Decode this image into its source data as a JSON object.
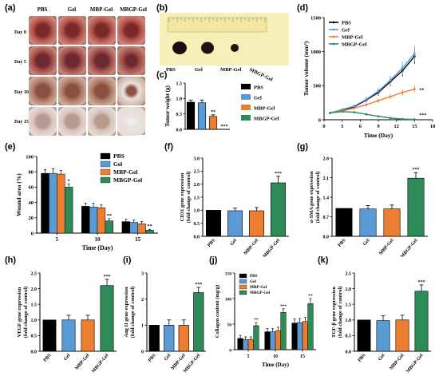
{
  "panels": {
    "a": "(a)",
    "b": "(b)",
    "c": "(c)",
    "d": "(d)",
    "e": "(e)",
    "f": "(f)",
    "g": "(g)",
    "h": "(h)",
    "i": "(i)",
    "j": "(j)",
    "k": "(k)"
  },
  "photo_panel": {
    "groups": [
      "PBS",
      "Gel",
      "MBP-Gel",
      "MBGP-Gel"
    ],
    "days": [
      "Day 0",
      "Day 5",
      "Day 10",
      "Day 15"
    ]
  },
  "tumor_photo": {
    "labels": [
      "PBS",
      "Gel",
      "MBP-Gel",
      "MBGP-Gel"
    ]
  },
  "colors": {
    "PBS": "#000000",
    "Gel": "#5b9bd5",
    "MBP-Gel": "#ed7d31",
    "MBGP-Gel": "#2e8b57"
  },
  "chart_data": [
    {
      "id": "c",
      "type": "bar",
      "ylabel": "Tumor weight (g)",
      "ylim": [
        0,
        1.5
      ],
      "yticks": [
        0.0,
        0.5,
        1.0,
        1.5
      ],
      "categories": [
        "PBS",
        "Gel",
        "MBP-Gel",
        "MBGP-Gel"
      ],
      "values": [
        0.88,
        0.86,
        0.42,
        0.0
      ],
      "errors": [
        0.07,
        0.09,
        0.05,
        0.0
      ],
      "annotations": [
        "",
        "",
        "**",
        "***"
      ],
      "legend": [
        "PBS",
        "Gel",
        "MBP-Gel",
        "MBGP-Gel"
      ]
    },
    {
      "id": "d",
      "type": "line",
      "xlabel": "Time (Day)",
      "ylabel": "Tumor volume (mm³)",
      "xlim": [
        0,
        18
      ],
      "xticks": [
        0,
        3,
        6,
        9,
        12,
        15,
        18
      ],
      "ylim": [
        0,
        1500
      ],
      "yticks": [
        0,
        500,
        1000,
        1500
      ],
      "x": [
        1,
        3,
        5,
        7,
        9,
        11,
        13,
        15
      ],
      "series": [
        {
          "name": "PBS",
          "values": [
            100,
            140,
            190,
            290,
            400,
            560,
            720,
            930
          ]
        },
        {
          "name": "Gel",
          "values": [
            100,
            150,
            200,
            300,
            420,
            580,
            760,
            970
          ]
        },
        {
          "name": "MBP-Gel",
          "values": [
            100,
            130,
            170,
            220,
            280,
            340,
            400,
            450
          ]
        },
        {
          "name": "MBGP-Gel",
          "values": [
            100,
            120,
            110,
            80,
            50,
            25,
            10,
            5
          ]
        }
      ],
      "annotations": [
        "**",
        "***"
      ]
    },
    {
      "id": "e",
      "type": "bar",
      "xlabel": "Time (Day)",
      "ylabel": "Wound area (%)",
      "ylim": [
        0,
        100
      ],
      "yticks": [
        0,
        20,
        40,
        60,
        80,
        100
      ],
      "categories": [
        "5",
        "10",
        "15"
      ],
      "series": [
        {
          "name": "PBS",
          "values": [
            78,
            35,
            15
          ],
          "errors": [
            5,
            4,
            3
          ]
        },
        {
          "name": "Gel",
          "values": [
            78,
            34,
            14
          ],
          "errors": [
            6,
            5,
            3
          ]
        },
        {
          "name": "MBP-Gel",
          "values": [
            77,
            33,
            12
          ],
          "errors": [
            5,
            4,
            3
          ]
        },
        {
          "name": "MBGP-Gel",
          "values": [
            60,
            16,
            4
          ],
          "errors": [
            4,
            3,
            1
          ]
        }
      ],
      "annotations": [
        "*",
        "**",
        "**"
      ]
    },
    {
      "id": "f",
      "type": "bar",
      "ylabel": "CD31 gene expression (fold change of control)",
      "ylim": [
        0,
        3.0
      ],
      "yticks": [
        0.0,
        0.5,
        1.0,
        1.5,
        2.0,
        2.5,
        3.0
      ],
      "categories": [
        "PBS",
        "Gel",
        "MBP-Gel",
        "MBGP-Gel"
      ],
      "values": [
        1.0,
        0.98,
        0.98,
        2.05
      ],
      "errors": [
        0,
        0.1,
        0.12,
        0.25
      ],
      "annotations": [
        "",
        "",
        "",
        "***"
      ]
    },
    {
      "id": "g",
      "type": "bar",
      "ylabel": "α-SMA gene expression (fold change of control)",
      "ylim": [
        0,
        2.8
      ],
      "yticks": [
        0.0,
        0.7,
        1.4,
        2.1,
        2.8
      ],
      "categories": [
        "PBS",
        "Gel",
        "MBP-Gel",
        "MBGP-Gel"
      ],
      "values": [
        1.0,
        0.98,
        0.98,
        2.08
      ],
      "errors": [
        0,
        0.12,
        0.14,
        0.2
      ],
      "annotations": [
        "",
        "",
        "",
        "***"
      ]
    },
    {
      "id": "h",
      "type": "bar",
      "ylabel": "VEGF gene expression (fold change of control)",
      "ylim": [
        0,
        2.5
      ],
      "yticks": [
        0.0,
        0.5,
        1.0,
        1.5,
        2.0,
        2.5
      ],
      "categories": [
        "PBS",
        "Gel",
        "MBP-Gel",
        "MBGP-Gel"
      ],
      "values": [
        1.0,
        1.0,
        1.0,
        2.1
      ],
      "errors": [
        0,
        0.15,
        0.15,
        0.2
      ],
      "annotations": [
        "",
        "",
        "",
        "***"
      ]
    },
    {
      "id": "i",
      "type": "bar",
      "ylabel": "Ang II gene expression (fold change of control)",
      "ylim": [
        0,
        3
      ],
      "yticks": [
        0,
        1,
        2,
        3
      ],
      "categories": [
        "PBS",
        "Gel",
        "MBP-Gel",
        "MBGP-Gel"
      ],
      "values": [
        1.0,
        1.0,
        1.0,
        2.25
      ],
      "errors": [
        0,
        0.2,
        0.2,
        0.2
      ],
      "annotations": [
        "",
        "",
        "",
        "***"
      ]
    },
    {
      "id": "j",
      "type": "bar",
      "xlabel": "Time (Day)",
      "ylabel": "Collagen content (mg/g)",
      "ylim": [
        0,
        150
      ],
      "yticks": [
        0,
        50,
        100,
        150
      ],
      "categories": [
        "5",
        "10",
        "15"
      ],
      "series": [
        {
          "name": "PBS",
          "values": [
            22,
            35,
            52
          ],
          "errors": [
            6,
            6,
            8
          ]
        },
        {
          "name": "Gel",
          "values": [
            20,
            35,
            53
          ],
          "errors": [
            5,
            6,
            8
          ]
        },
        {
          "name": "MBP-Gel",
          "values": [
            20,
            37,
            55
          ],
          "errors": [
            5,
            7,
            8
          ]
        },
        {
          "name": "MBGP-Gel",
          "values": [
            47,
            73,
            90
          ],
          "errors": [
            6,
            7,
            10
          ]
        }
      ],
      "annotations": [
        "**",
        "***",
        "**"
      ]
    },
    {
      "id": "k",
      "type": "bar",
      "ylabel": "TGF-β gene expression (fold change of control)",
      "ylim": [
        0,
        2.5
      ],
      "yticks": [
        0.0,
        0.5,
        1.0,
        1.5,
        2.0,
        2.5
      ],
      "categories": [
        "PBS",
        "Gel",
        "MBP-Gel",
        "MBGP-Gel"
      ],
      "values": [
        1.0,
        0.98,
        1.0,
        1.92
      ],
      "errors": [
        0,
        0.15,
        0.15,
        0.2
      ],
      "annotations": [
        "",
        "",
        "",
        "***"
      ]
    }
  ]
}
